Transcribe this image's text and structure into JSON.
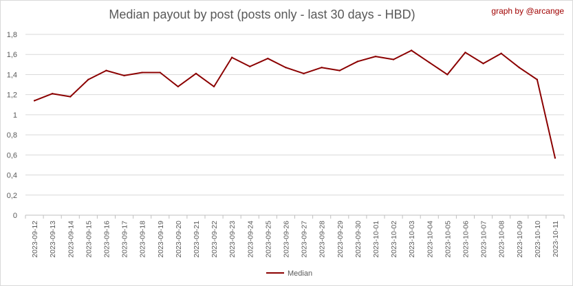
{
  "chart_data": {
    "type": "line",
    "title": "Median payout by post (posts only - last 30 days - HBD)",
    "annotation": "graph by @arcange",
    "xlabel": "",
    "ylabel": "",
    "ylim": [
      0,
      1.8
    ],
    "yticks": [
      "0",
      "0,2",
      "0,4",
      "0,6",
      "0,8",
      "1",
      "1,2",
      "1,4",
      "1,6",
      "1,8"
    ],
    "grid": true,
    "legend_position": "bottom",
    "x": [
      "2023-09-12",
      "2023-09-13",
      "2023-09-14",
      "2023-09-15",
      "2023-09-16",
      "2023-09-17",
      "2023-09-18",
      "2023-09-19",
      "2023-09-20",
      "2023-09-21",
      "2023-09-22",
      "2023-09-23",
      "2023-09-24",
      "2023-09-25",
      "2023-09-26",
      "2023-09-27",
      "2023-09-28",
      "2023-09-29",
      "2023-09-30",
      "2023-10-01",
      "2023-10-02",
      "2023-10-03",
      "2023-10-04",
      "2023-10-05",
      "2023-10-06",
      "2023-10-07",
      "2023-10-08",
      "2023-10-09",
      "2023-10-10",
      "2023-10-11"
    ],
    "series": [
      {
        "name": "Median",
        "color": "#8b0000",
        "values": [
          1.14,
          1.21,
          1.18,
          1.35,
          1.44,
          1.39,
          1.42,
          1.42,
          1.28,
          1.41,
          1.28,
          1.57,
          1.48,
          1.56,
          1.47,
          1.41,
          1.47,
          1.44,
          1.53,
          1.58,
          1.55,
          1.64,
          1.52,
          1.4,
          1.62,
          1.51,
          1.61,
          1.47,
          1.35,
          0.57
        ]
      }
    ]
  }
}
